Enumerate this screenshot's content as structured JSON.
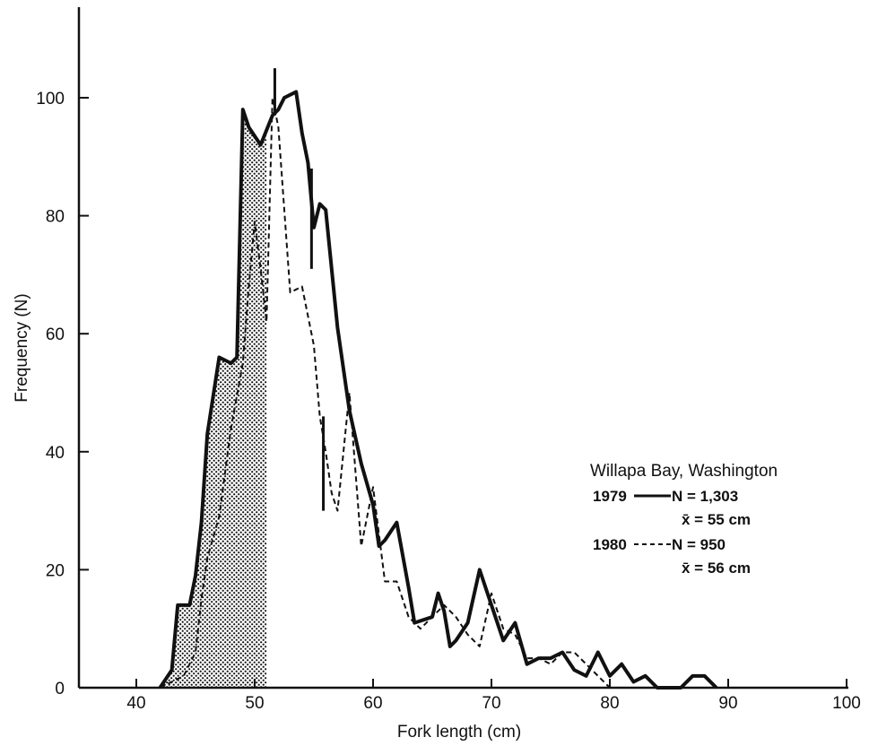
{
  "chart_data": {
    "type": "line",
    "xlabel": "Fork length (cm)",
    "ylabel": "Frequency (N)",
    "xlim": [
      35,
      100
    ],
    "ylim": [
      0,
      115
    ],
    "xticks": [
      40,
      50,
      60,
      70,
      80,
      90,
      100
    ],
    "yticks": [
      0,
      20,
      40,
      60,
      80,
      100
    ],
    "grid": false,
    "legend_position": "right",
    "shaded_region": {
      "x_start": 42,
      "x_end": 51,
      "pattern": "stipple"
    },
    "legend": {
      "title": "Willapa Bay, Washington",
      "entries": [
        {
          "year": "1979",
          "n_text": "N = 1,303",
          "mean_text": "x̄ = 55 cm"
        },
        {
          "year": "1980",
          "n_text": "N = 950",
          "mean_text": "x̄ = 56 cm"
        }
      ]
    },
    "series": [
      {
        "name": "1979",
        "style": "solid",
        "color": "#111111",
        "points": [
          [
            42,
            0
          ],
          [
            43,
            3
          ],
          [
            43.5,
            14
          ],
          [
            44.5,
            14
          ],
          [
            45,
            19
          ],
          [
            45.5,
            28
          ],
          [
            46,
            43
          ],
          [
            47,
            56
          ],
          [
            48,
            55
          ],
          [
            48.5,
            56
          ],
          [
            49,
            98
          ],
          [
            49.5,
            95
          ],
          [
            50.5,
            92
          ],
          [
            51.5,
            97
          ],
          [
            52,
            98
          ],
          [
            52.5,
            100
          ],
          [
            53.5,
            101
          ],
          [
            54,
            94
          ],
          [
            54.5,
            89
          ],
          [
            55,
            78
          ],
          [
            55.5,
            82
          ],
          [
            56,
            81
          ],
          [
            57,
            61
          ],
          [
            58,
            47
          ],
          [
            59,
            38
          ],
          [
            60,
            31
          ],
          [
            60.5,
            24
          ],
          [
            61,
            25
          ],
          [
            62,
            28
          ],
          [
            63,
            17
          ],
          [
            63.5,
            11
          ],
          [
            65,
            12
          ],
          [
            65.5,
            16
          ],
          [
            66,
            13
          ],
          [
            66.5,
            7
          ],
          [
            67,
            8
          ],
          [
            68,
            11
          ],
          [
            69,
            20
          ],
          [
            70,
            14
          ],
          [
            71,
            8
          ],
          [
            72,
            11
          ],
          [
            73,
            4
          ],
          [
            74,
            5
          ],
          [
            75,
            5
          ],
          [
            76,
            6
          ],
          [
            77,
            3
          ],
          [
            78,
            2
          ],
          [
            79,
            6
          ],
          [
            80,
            2
          ],
          [
            81,
            4
          ],
          [
            82,
            1
          ],
          [
            83,
            2
          ],
          [
            84,
            0
          ],
          [
            86,
            0
          ],
          [
            87,
            2
          ],
          [
            88,
            2
          ],
          [
            89,
            0
          ]
        ]
      },
      {
        "name": "1980",
        "style": "dashed",
        "color": "#111111",
        "points": [
          [
            42,
            0
          ],
          [
            43,
            1
          ],
          [
            44,
            2
          ],
          [
            45,
            6
          ],
          [
            45.5,
            15
          ],
          [
            46,
            22
          ],
          [
            47,
            29
          ],
          [
            48,
            44
          ],
          [
            49,
            55
          ],
          [
            49.5,
            68
          ],
          [
            50,
            79
          ],
          [
            50.5,
            71
          ],
          [
            51,
            62
          ],
          [
            51.5,
            100
          ],
          [
            52,
            95
          ],
          [
            53,
            67
          ],
          [
            54,
            68
          ],
          [
            55,
            58
          ],
          [
            55.5,
            46
          ],
          [
            56,
            40
          ],
          [
            56.5,
            33
          ],
          [
            57,
            30
          ],
          [
            57.5,
            40
          ],
          [
            58,
            50
          ],
          [
            59,
            24
          ],
          [
            60,
            34
          ],
          [
            61,
            18
          ],
          [
            62,
            18
          ],
          [
            63,
            12
          ],
          [
            64,
            10
          ],
          [
            65,
            12
          ],
          [
            66,
            14
          ],
          [
            67,
            12
          ],
          [
            68,
            9
          ],
          [
            69,
            7
          ],
          [
            70,
            16
          ],
          [
            71,
            10
          ],
          [
            72,
            9
          ],
          [
            73,
            5
          ],
          [
            74,
            5
          ],
          [
            75,
            4
          ],
          [
            76,
            6
          ],
          [
            77,
            6
          ],
          [
            78,
            4
          ],
          [
            79,
            2
          ],
          [
            80,
            0
          ]
        ]
      }
    ],
    "spikes": [
      {
        "x": 51.7,
        "y_low": 97,
        "y_high": 105
      },
      {
        "x": 54.8,
        "y_low": 71,
        "y_high": 88
      },
      {
        "x": 55.8,
        "y_low": 30,
        "y_high": 46
      }
    ]
  }
}
